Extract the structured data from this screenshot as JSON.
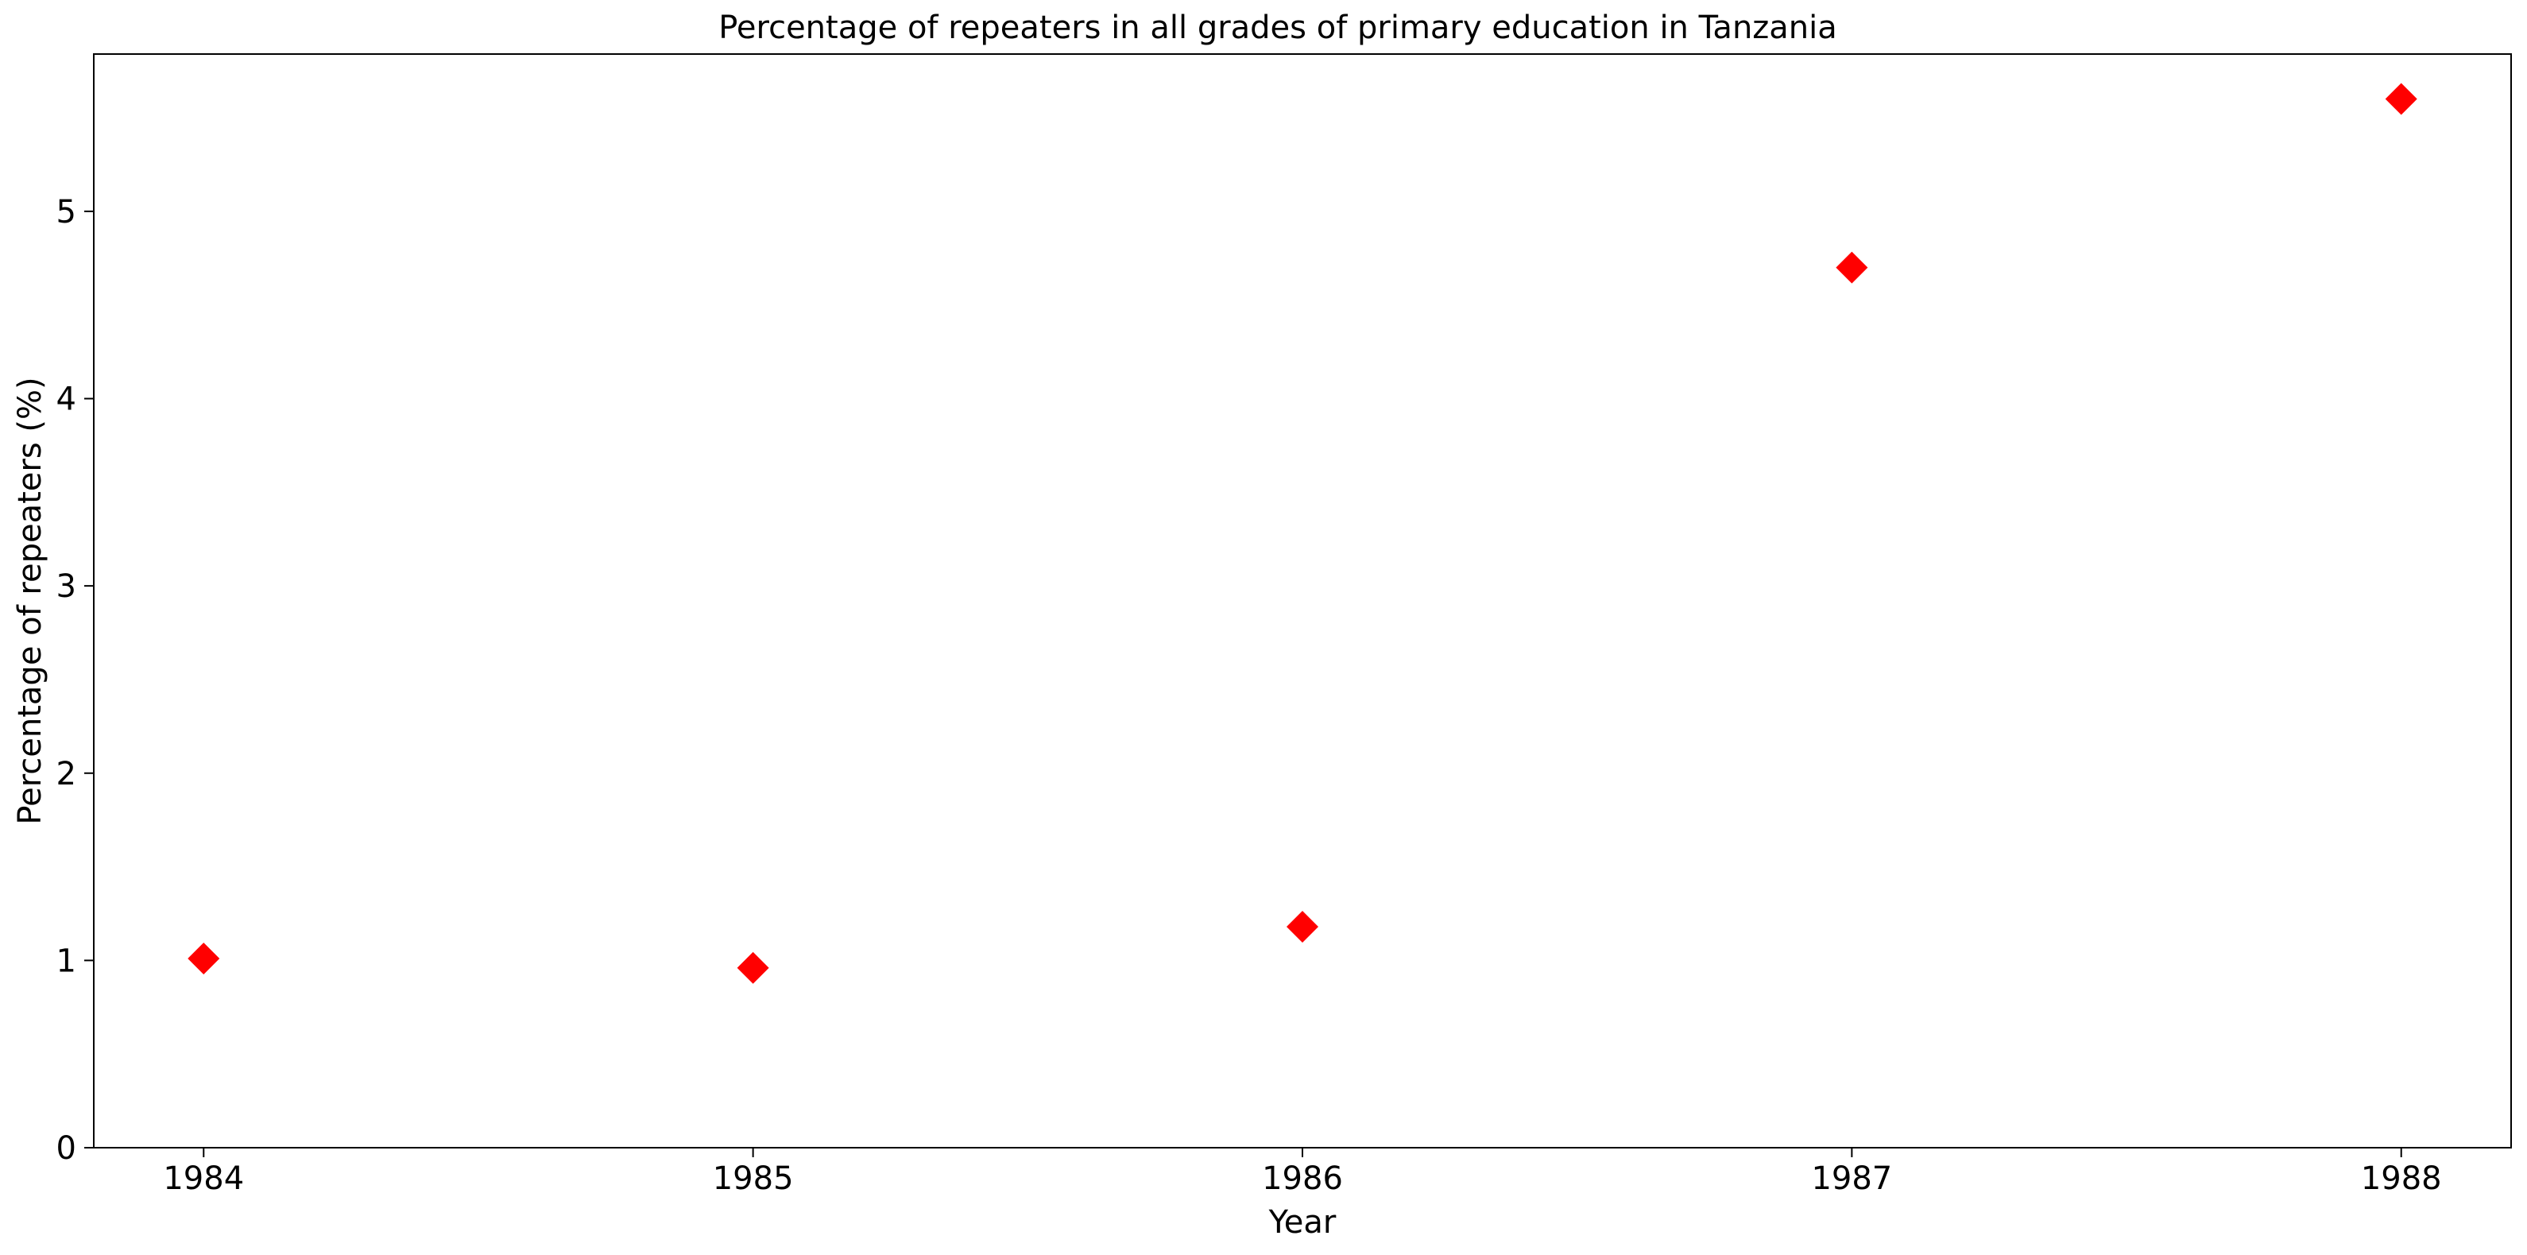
{
  "chart_data": {
    "type": "scatter",
    "title": "Percentage of repeaters in all grades of primary education in Tanzania",
    "xlabel": "Year",
    "ylabel": "Percentage of repeaters (%)",
    "x": [
      1984,
      1985,
      1986,
      1987,
      1988
    ],
    "y": [
      1.01,
      0.96,
      1.18,
      4.7,
      5.6
    ],
    "xticks": [
      "1984",
      "1985",
      "1986",
      "1987",
      "1988"
    ],
    "yticks": [
      "0",
      "1",
      "2",
      "3",
      "4",
      "5"
    ],
    "xlim": [
      1983.8,
      1988.2
    ],
    "ylim": [
      0,
      5.84
    ],
    "marker": "diamond",
    "marker_color": "#ff0000",
    "grid": false,
    "legend": "none"
  }
}
